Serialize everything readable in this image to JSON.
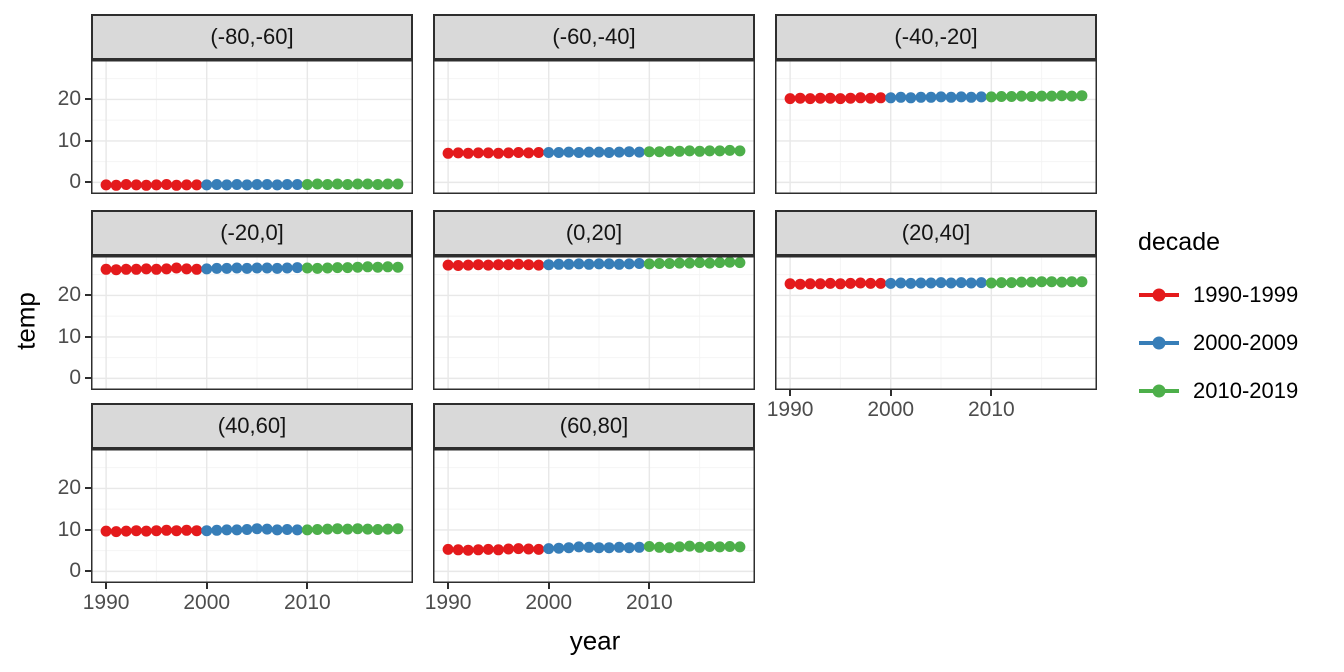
{
  "chart_data": {
    "type": "scatter",
    "title": "",
    "xlabel": "year",
    "ylabel": "temp",
    "xlim": [
      1988.5,
      2020.5
    ],
    "ylim": [
      -2.8,
      29.5
    ],
    "x_ticks": [
      1990,
      2000,
      2010
    ],
    "x_minor": [
      1995,
      2005,
      2015
    ],
    "y_ticks": [
      0,
      10,
      20
    ],
    "y_minor": [
      5,
      15,
      25
    ],
    "grid": "on",
    "legend_position": "right",
    "years": [
      1990,
      1991,
      1992,
      1993,
      1994,
      1995,
      1996,
      1997,
      1998,
      1999,
      2000,
      2001,
      2002,
      2003,
      2004,
      2005,
      2006,
      2007,
      2008,
      2009,
      2010,
      2011,
      2012,
      2013,
      2014,
      2015,
      2016,
      2017,
      2018,
      2019
    ],
    "series": [
      {
        "name": "1990-1999",
        "color": "#E41A1C",
        "year_start": 1990,
        "year_end": 1999
      },
      {
        "name": "2000-2009",
        "color": "#377EB8",
        "year_start": 2000,
        "year_end": 2009
      },
      {
        "name": "2010-2019",
        "color": "#4DAF4A",
        "year_start": 2010,
        "year_end": 2019
      }
    ],
    "facets": [
      {
        "label": "(-80,-60]",
        "values": [
          -0.6,
          -0.7,
          -0.5,
          -0.6,
          -0.7,
          -0.6,
          -0.5,
          -0.7,
          -0.6,
          -0.6,
          -0.6,
          -0.5,
          -0.6,
          -0.5,
          -0.6,
          -0.5,
          -0.5,
          -0.6,
          -0.5,
          -0.5,
          -0.5,
          -0.4,
          -0.5,
          -0.4,
          -0.5,
          -0.4,
          -0.4,
          -0.5,
          -0.4,
          -0.4
        ]
      },
      {
        "label": "(-60,-40]",
        "values": [
          7.0,
          7.1,
          7.0,
          7.1,
          7.1,
          7.0,
          7.1,
          7.2,
          7.1,
          7.2,
          7.2,
          7.2,
          7.3,
          7.2,
          7.3,
          7.3,
          7.2,
          7.3,
          7.4,
          7.3,
          7.4,
          7.4,
          7.5,
          7.5,
          7.6,
          7.5,
          7.6,
          7.6,
          7.7,
          7.6
        ]
      },
      {
        "label": "(-40,-20]",
        "values": [
          20.2,
          20.3,
          20.2,
          20.3,
          20.3,
          20.2,
          20.3,
          20.4,
          20.3,
          20.4,
          20.4,
          20.5,
          20.4,
          20.5,
          20.5,
          20.6,
          20.5,
          20.6,
          20.5,
          20.6,
          20.6,
          20.7,
          20.7,
          20.8,
          20.7,
          20.8,
          20.8,
          20.9,
          20.8,
          20.9
        ]
      },
      {
        "label": "(-20,0]",
        "values": [
          26.3,
          26.2,
          26.3,
          26.3,
          26.4,
          26.3,
          26.4,
          26.6,
          26.4,
          26.3,
          26.4,
          26.5,
          26.5,
          26.6,
          26.5,
          26.6,
          26.6,
          26.5,
          26.6,
          26.7,
          26.6,
          26.5,
          26.6,
          26.7,
          26.7,
          26.8,
          26.9,
          26.8,
          26.9,
          26.8
        ]
      },
      {
        "label": "(0,20]",
        "values": [
          27.3,
          27.2,
          27.3,
          27.4,
          27.3,
          27.4,
          27.4,
          27.5,
          27.4,
          27.3,
          27.4,
          27.5,
          27.5,
          27.6,
          27.5,
          27.6,
          27.6,
          27.5,
          27.6,
          27.7,
          27.6,
          27.7,
          27.7,
          27.8,
          27.8,
          27.9,
          27.8,
          27.9,
          28.0,
          27.9
        ]
      },
      {
        "label": "(20,40]",
        "values": [
          22.8,
          22.7,
          22.8,
          22.8,
          22.9,
          22.8,
          22.9,
          23.0,
          22.9,
          22.9,
          22.9,
          23.0,
          22.9,
          23.0,
          23.0,
          23.1,
          23.0,
          23.1,
          23.0,
          23.1,
          23.0,
          23.1,
          23.1,
          23.2,
          23.2,
          23.3,
          23.3,
          23.2,
          23.3,
          23.3
        ]
      },
      {
        "label": "(40,60]",
        "values": [
          9.7,
          9.6,
          9.7,
          9.8,
          9.7,
          9.8,
          9.9,
          9.8,
          9.9,
          9.8,
          9.8,
          9.9,
          10.0,
          10.0,
          10.1,
          10.3,
          10.2,
          10.0,
          10.1,
          10.0,
          10.0,
          10.1,
          10.2,
          10.3,
          10.2,
          10.3,
          10.2,
          10.1,
          10.2,
          10.3
        ]
      },
      {
        "label": "(60,80]",
        "values": [
          5.3,
          5.2,
          5.1,
          5.2,
          5.3,
          5.2,
          5.4,
          5.5,
          5.4,
          5.3,
          5.5,
          5.6,
          5.7,
          5.9,
          5.8,
          5.7,
          5.7,
          5.8,
          5.7,
          5.8,
          6.0,
          5.8,
          5.7,
          5.9,
          6.1,
          5.8,
          6.0,
          5.9,
          6.0,
          5.9
        ]
      }
    ],
    "style_colors": {
      "strip_bg": "#d9d9d9",
      "panel_border": "#2e2e2e",
      "grid_major": "#e8e8e8",
      "grid_minor": "#f4f4f4",
      "tick_text": "#4d4d4d"
    }
  },
  "legend": {
    "title": "decade",
    "items": [
      {
        "label": "1990-1999",
        "color": "#E41A1C"
      },
      {
        "label": "2000-2009",
        "color": "#377EB8"
      },
      {
        "label": "2010-2019",
        "color": "#4DAF4A"
      }
    ]
  }
}
